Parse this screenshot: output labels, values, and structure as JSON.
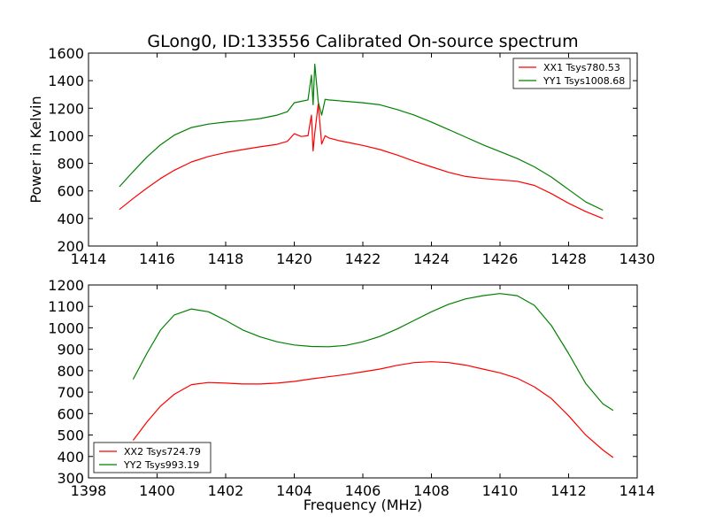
{
  "chart_data": [
    {
      "type": "line",
      "title": "GLong0, ID:133556 Calibrated On-source spectrum",
      "xlabel": "",
      "ylabel": "Power in Kelvin",
      "xlim": [
        1414,
        1430
      ],
      "ylim": [
        200,
        1600
      ],
      "xticks": [
        "1414",
        "1416",
        "1418",
        "1420",
        "1422",
        "1424",
        "1426",
        "1428",
        "1430"
      ],
      "yticks": [
        "200",
        "400",
        "600",
        "800",
        "1000",
        "1200",
        "1400",
        "1600"
      ],
      "legend_position": "top-right",
      "grid": false,
      "series": [
        {
          "name": "XX1 Tsys780.53",
          "color": "#ff0000",
          "x": [
            1414.9,
            1415.3,
            1415.7,
            1416.1,
            1416.5,
            1417.0,
            1417.5,
            1418.0,
            1418.5,
            1419.0,
            1419.5,
            1419.8,
            1420.0,
            1420.2,
            1420.4,
            1420.5,
            1420.55,
            1420.6,
            1420.7,
            1420.8,
            1420.9,
            1421.0,
            1421.3,
            1421.7,
            1422.0,
            1422.5,
            1423.0,
            1423.5,
            1424.0,
            1424.5,
            1425.0,
            1425.5,
            1426.0,
            1426.5,
            1427.0,
            1427.5,
            1428.0,
            1428.5,
            1429.0
          ],
          "values": [
            465,
            545,
            620,
            690,
            750,
            810,
            850,
            878,
            900,
            920,
            938,
            960,
            1015,
            995,
            1000,
            1150,
            890,
            1020,
            1230,
            940,
            1000,
            985,
            965,
            945,
            930,
            900,
            860,
            815,
            775,
            735,
            705,
            690,
            680,
            670,
            640,
            580,
            510,
            450,
            400
          ]
        },
        {
          "name": "YY1 Tsys1008.68",
          "color": "#008000",
          "x": [
            1414.9,
            1415.3,
            1415.7,
            1416.1,
            1416.5,
            1417.0,
            1417.5,
            1418.0,
            1418.5,
            1419.0,
            1419.5,
            1419.8,
            1420.0,
            1420.2,
            1420.4,
            1420.5,
            1420.55,
            1420.6,
            1420.7,
            1420.8,
            1420.9,
            1421.0,
            1421.5,
            1422.0,
            1422.5,
            1423.0,
            1423.5,
            1424.0,
            1424.5,
            1425.0,
            1425.5,
            1426.0,
            1426.5,
            1427.0,
            1427.5,
            1428.0,
            1428.5,
            1429.0
          ],
          "values": [
            630,
            740,
            845,
            935,
            1005,
            1060,
            1085,
            1100,
            1110,
            1125,
            1150,
            1175,
            1240,
            1250,
            1260,
            1440,
            1225,
            1520,
            1245,
            1150,
            1265,
            1260,
            1250,
            1240,
            1225,
            1190,
            1150,
            1100,
            1045,
            990,
            935,
            885,
            835,
            775,
            700,
            610,
            520,
            460
          ]
        }
      ]
    },
    {
      "type": "line",
      "title": "",
      "xlabel": "Frequency (MHz)",
      "ylabel": "",
      "xlim": [
        1398,
        1414
      ],
      "ylim": [
        300,
        1200
      ],
      "xticks": [
        "1398",
        "1400",
        "1402",
        "1404",
        "1406",
        "1408",
        "1410",
        "1412",
        "1414"
      ],
      "yticks": [
        "300",
        "400",
        "500",
        "600",
        "700",
        "800",
        "900",
        "1000",
        "1100",
        "1200"
      ],
      "legend_position": "bottom-left",
      "grid": false,
      "series": [
        {
          "name": "XX2 Tsys724.79",
          "color": "#ff0000",
          "x": [
            1399.3,
            1399.7,
            1400.1,
            1400.5,
            1401.0,
            1401.5,
            1402.0,
            1402.5,
            1403.0,
            1403.5,
            1404.0,
            1404.5,
            1405.0,
            1405.5,
            1406.0,
            1406.5,
            1407.0,
            1407.5,
            1408.0,
            1408.5,
            1409.0,
            1409.5,
            1410.0,
            1410.5,
            1411.0,
            1411.5,
            1412.0,
            1412.5,
            1413.0,
            1413.3
          ],
          "values": [
            475,
            560,
            635,
            690,
            735,
            745,
            742,
            738,
            738,
            742,
            750,
            762,
            772,
            782,
            795,
            808,
            825,
            838,
            842,
            838,
            826,
            808,
            790,
            765,
            725,
            670,
            590,
            500,
            430,
            395
          ]
        },
        {
          "name": "YY2 Tsys993.19",
          "color": "#008000",
          "x": [
            1399.3,
            1399.7,
            1400.1,
            1400.5,
            1401.0,
            1401.5,
            1402.0,
            1402.5,
            1403.0,
            1403.5,
            1404.0,
            1404.5,
            1405.0,
            1405.5,
            1406.0,
            1406.5,
            1407.0,
            1407.5,
            1408.0,
            1408.5,
            1409.0,
            1409.5,
            1410.0,
            1410.5,
            1411.0,
            1411.5,
            1412.0,
            1412.5,
            1413.0,
            1413.3
          ],
          "values": [
            760,
            880,
            990,
            1060,
            1088,
            1075,
            1035,
            990,
            958,
            935,
            920,
            913,
            912,
            918,
            935,
            960,
            995,
            1035,
            1075,
            1110,
            1135,
            1150,
            1160,
            1150,
            1105,
            1010,
            880,
            740,
            645,
            615
          ]
        }
      ]
    }
  ]
}
